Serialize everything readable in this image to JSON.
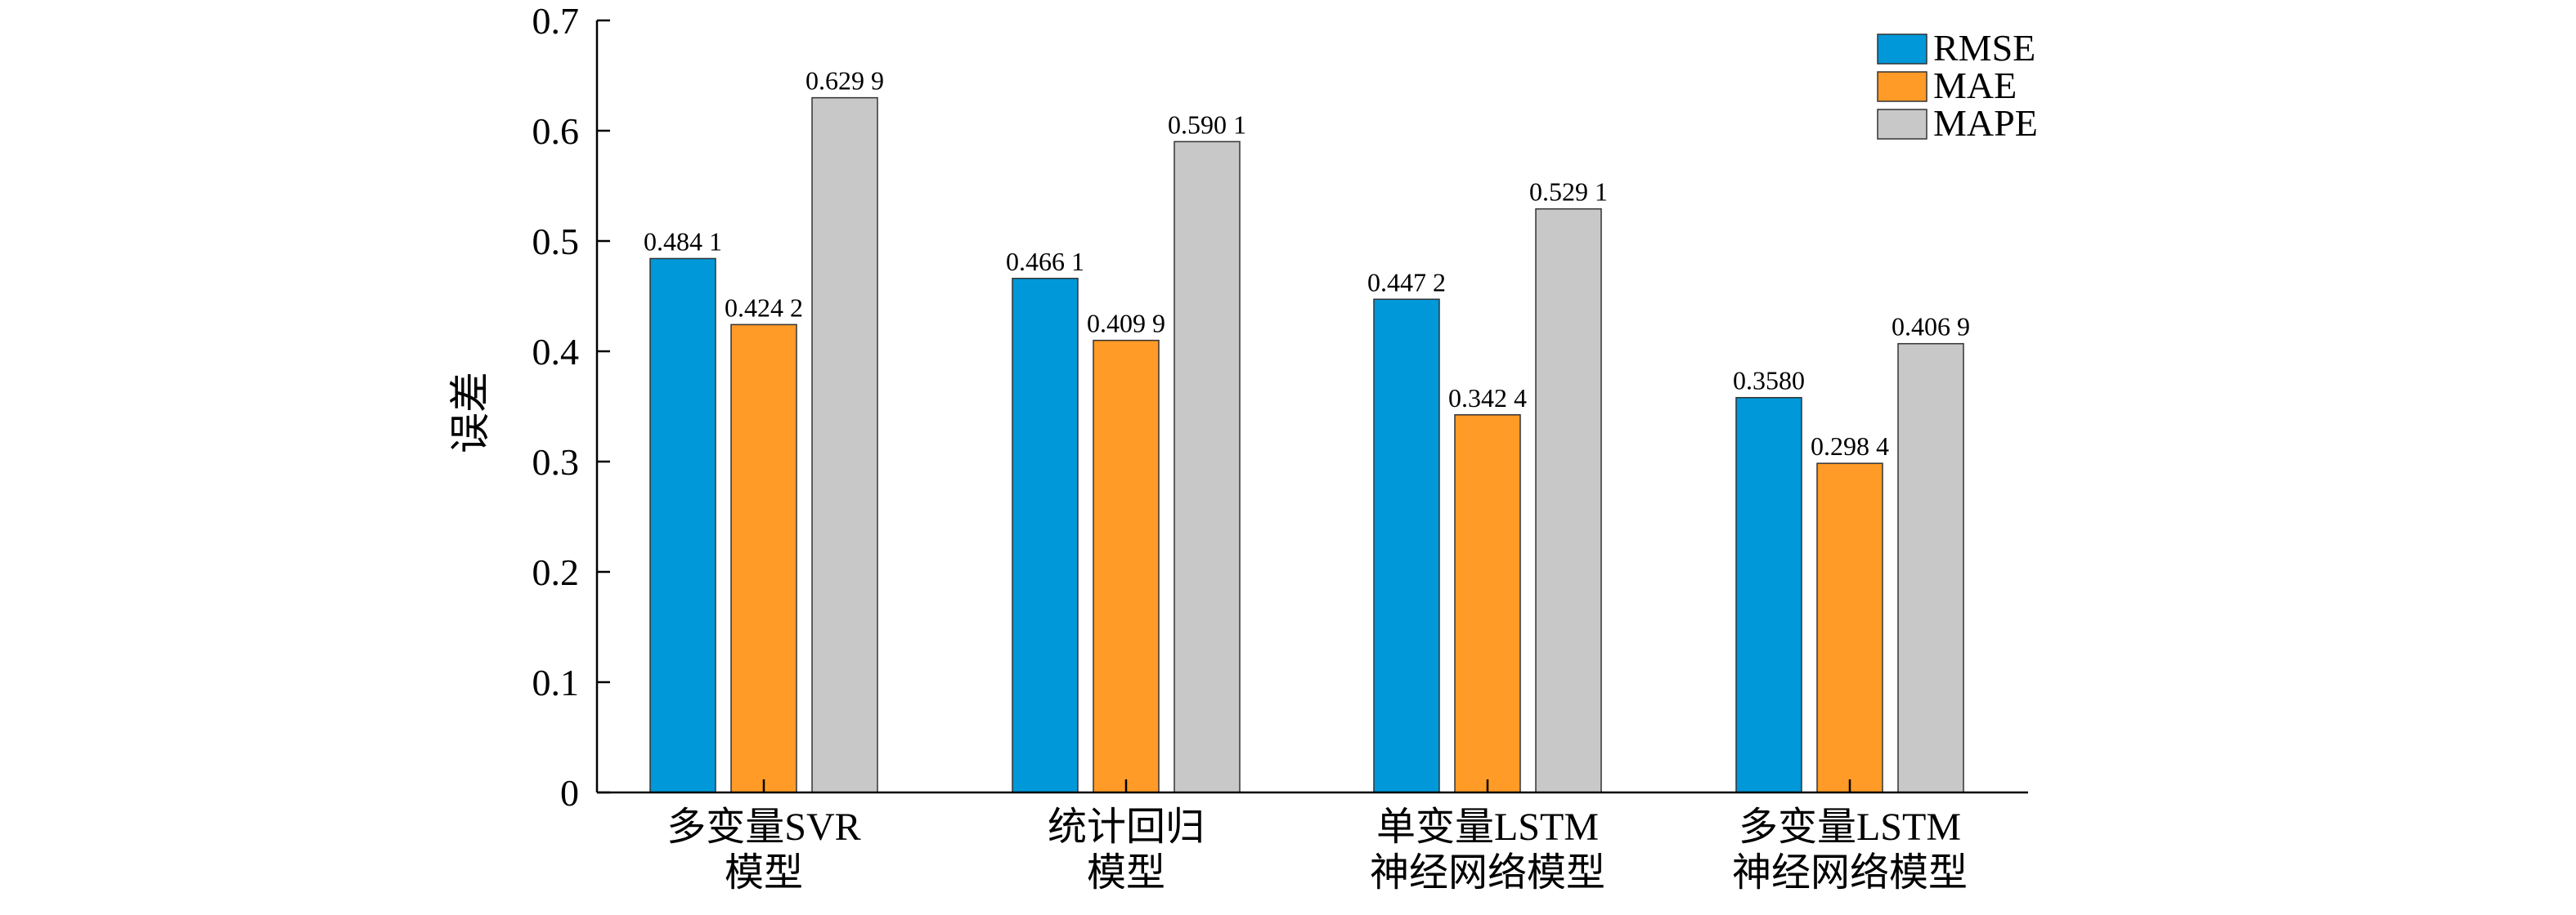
{
  "chart_data": {
    "type": "bar",
    "title": "",
    "xlabel": "",
    "ylabel": "误差",
    "ylim": [
      0,
      0.7
    ],
    "yticks": [
      0,
      0.1,
      0.2,
      0.3,
      0.4,
      0.5,
      0.6,
      0.7
    ],
    "ytick_labels": [
      "0",
      "0.1",
      "0.2",
      "0.3",
      "0.4",
      "0.5",
      "0.6",
      "0.7"
    ],
    "categories": [
      [
        "多变量SVR",
        "模型"
      ],
      [
        "统计回归",
        "模型"
      ],
      [
        "单变量LSTM",
        "神经网络模型"
      ],
      [
        "多变量LSTM",
        "神经网络模型"
      ]
    ],
    "series": [
      {
        "name": "RMSE",
        "color": "#0098d8",
        "values": [
          0.4841,
          0.4661,
          0.4472,
          0.358
        ],
        "labels": [
          "0.484 1",
          "0.466 1",
          "0.447 2",
          "0.3580"
        ]
      },
      {
        "name": "MAE",
        "color": "#ff9b26",
        "values": [
          0.4242,
          0.4099,
          0.3424,
          0.2984
        ],
        "labels": [
          "0.424 2",
          "0.409 9",
          "0.342 4",
          "0.298 4"
        ]
      },
      {
        "name": "MAPE",
        "color": "#c8c8c8",
        "values": [
          0.6299,
          0.5901,
          0.5291,
          0.4069
        ],
        "labels": [
          "0.629 9",
          "0.590 1",
          "0.529 1",
          "0.406 9"
        ]
      }
    ],
    "legend": {
      "position": "top-right"
    },
    "grid": false
  }
}
